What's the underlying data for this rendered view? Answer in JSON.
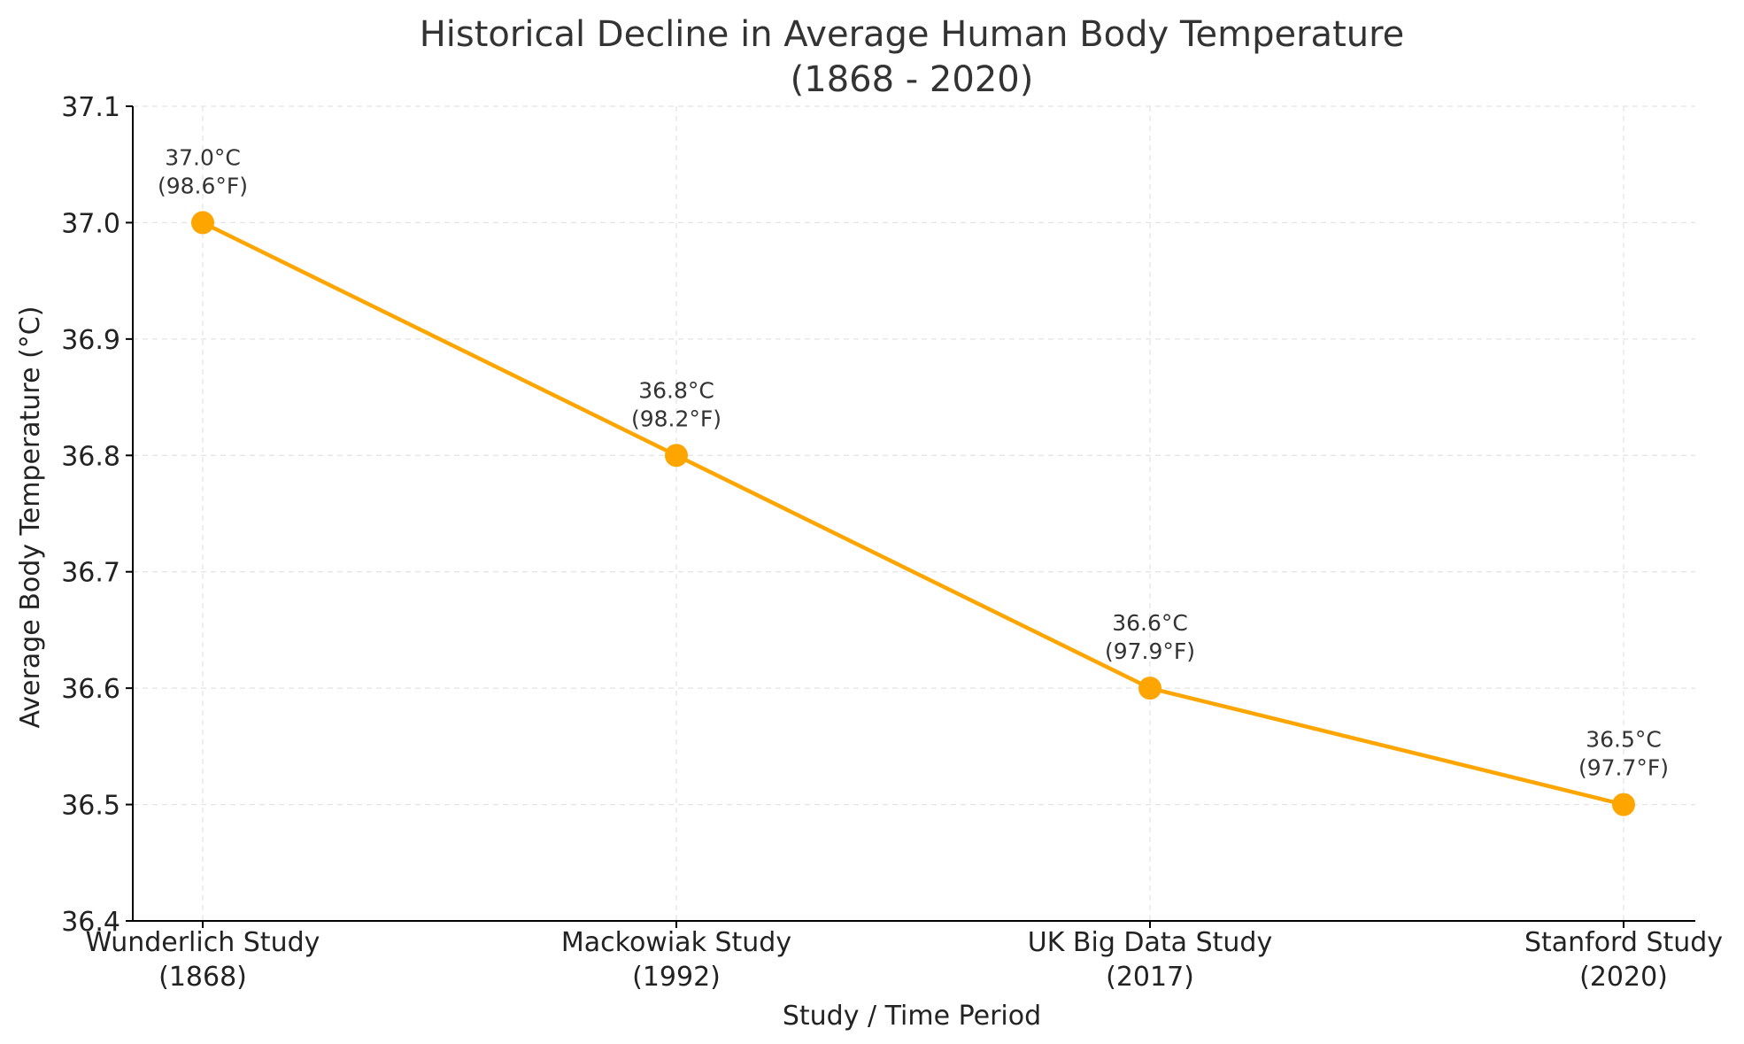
{
  "chart_data": {
    "type": "line",
    "title": [
      "Historical Decline in Average Human Body Temperature",
      "(1868 - 2020)"
    ],
    "xlabel": "Study / Time Period",
    "ylabel": "Average Body Temperature (°C)",
    "categories": [
      [
        "Wunderlich Study",
        "(1868)"
      ],
      [
        "Mackowiak Study",
        "(1992)"
      ],
      [
        "UK Big Data Study",
        "(2017)"
      ],
      [
        "Stanford Study",
        "(2020)"
      ]
    ],
    "series": [
      {
        "values": [
          37.0,
          36.8,
          36.6,
          36.5
        ],
        "color": "#FFA500"
      }
    ],
    "data_labels": [
      [
        "37.0°C",
        "(98.6°F)"
      ],
      [
        "36.8°C",
        "(98.2°F)"
      ],
      [
        "36.6°C",
        "(97.9°F)"
      ],
      [
        "36.5°C",
        "(97.7°F)"
      ]
    ],
    "ylim": [
      36.4,
      37.1
    ],
    "yticks": [
      "36.4",
      "36.5",
      "36.6",
      "36.7",
      "36.8",
      "36.9",
      "37.0",
      "37.1"
    ],
    "grid": true,
    "legend": "none"
  }
}
